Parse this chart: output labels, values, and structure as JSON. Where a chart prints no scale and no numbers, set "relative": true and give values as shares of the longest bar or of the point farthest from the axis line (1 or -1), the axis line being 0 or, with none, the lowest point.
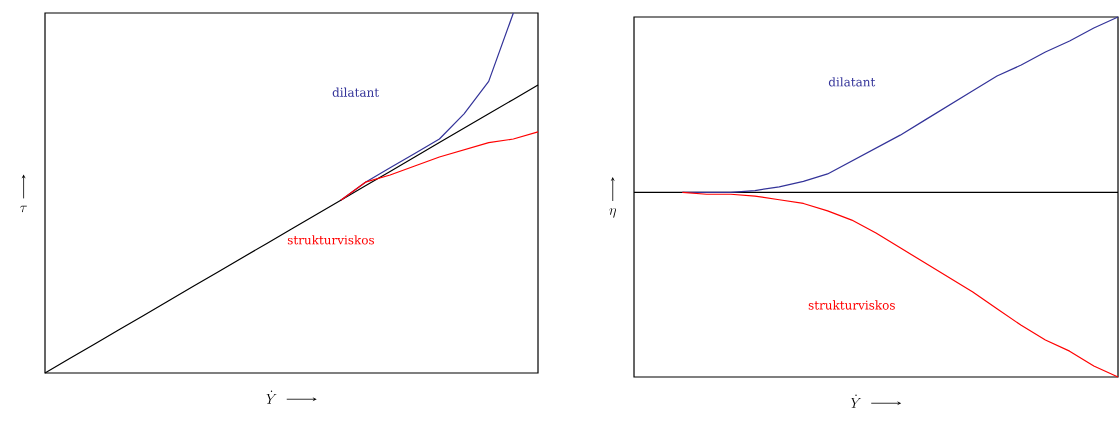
{
  "chart_data": [
    {
      "type": "line",
      "relative": true,
      "xlabel": "\\dot{Y}",
      "ylabel": "\\tau",
      "categories": [
        null,
        null,
        null,
        null,
        null,
        null,
        null,
        null,
        null,
        null,
        null,
        null,
        null,
        null,
        null,
        null,
        null,
        null,
        null,
        null,
        null
      ],
      "series": [
        {
          "color": "#000000",
          "values": [
            0,
            0.04,
            0.08,
            0.12,
            0.16,
            0.2,
            0.24,
            0.28,
            0.32,
            0.36,
            0.4,
            0.44,
            0.48,
            0.52,
            0.56,
            0.6,
            0.64,
            0.68,
            0.72,
            0.76,
            0.8
          ]
        },
        {
          "name": "dilatant",
          "color": "#333399",
          "values": [
            null,
            null,
            null,
            null,
            null,
            null,
            null,
            null,
            null,
            null,
            null,
            null,
            0.48,
            0.53,
            0.57,
            0.61,
            0.65,
            0.72,
            0.81,
            1.0,
            null
          ]
        },
        {
          "name": "strukturviskos",
          "color": "#ff0000",
          "values": [
            null,
            null,
            null,
            null,
            null,
            null,
            null,
            null,
            null,
            null,
            null,
            null,
            0.48,
            0.53,
            0.55,
            0.575,
            0.6,
            0.62,
            0.64,
            0.65,
            0.67
          ]
        }
      ]
    },
    {
      "type": "line",
      "relative": true,
      "xlabel": "\\dot{Y}",
      "ylabel": "\\eta",
      "categories": [
        null,
        null,
        null,
        null,
        null,
        null,
        null,
        null,
        null,
        null,
        null,
        null,
        null,
        null,
        null,
        null,
        null,
        null,
        null,
        null,
        null
      ],
      "series": [
        {
          "color": "#000000",
          "values": [
            0,
            0,
            0,
            0,
            0,
            0,
            0,
            0,
            0,
            0,
            0,
            0,
            0,
            0,
            0,
            0,
            0,
            0,
            0,
            0,
            0
          ]
        },
        {
          "name": "dilatant",
          "color": "#333399",
          "values": [
            null,
            null,
            0,
            0,
            0,
            0.01,
            0.03,
            0.06,
            0.1,
            0.17,
            0.24,
            0.31,
            0.39,
            0.47,
            0.55,
            0.63,
            0.69,
            0.76,
            0.82,
            0.89,
            0.95
          ]
        },
        {
          "name": "strukturviskos",
          "color": "#ff0000",
          "values": [
            null,
            null,
            0,
            -0.01,
            -0.01,
            -0.02,
            -0.04,
            -0.06,
            -0.1,
            -0.15,
            -0.22,
            -0.3,
            -0.38,
            -0.46,
            -0.54,
            -0.63,
            -0.72,
            -0.8,
            -0.86,
            -0.94,
            -1
          ]
        }
      ]
    }
  ]
}
